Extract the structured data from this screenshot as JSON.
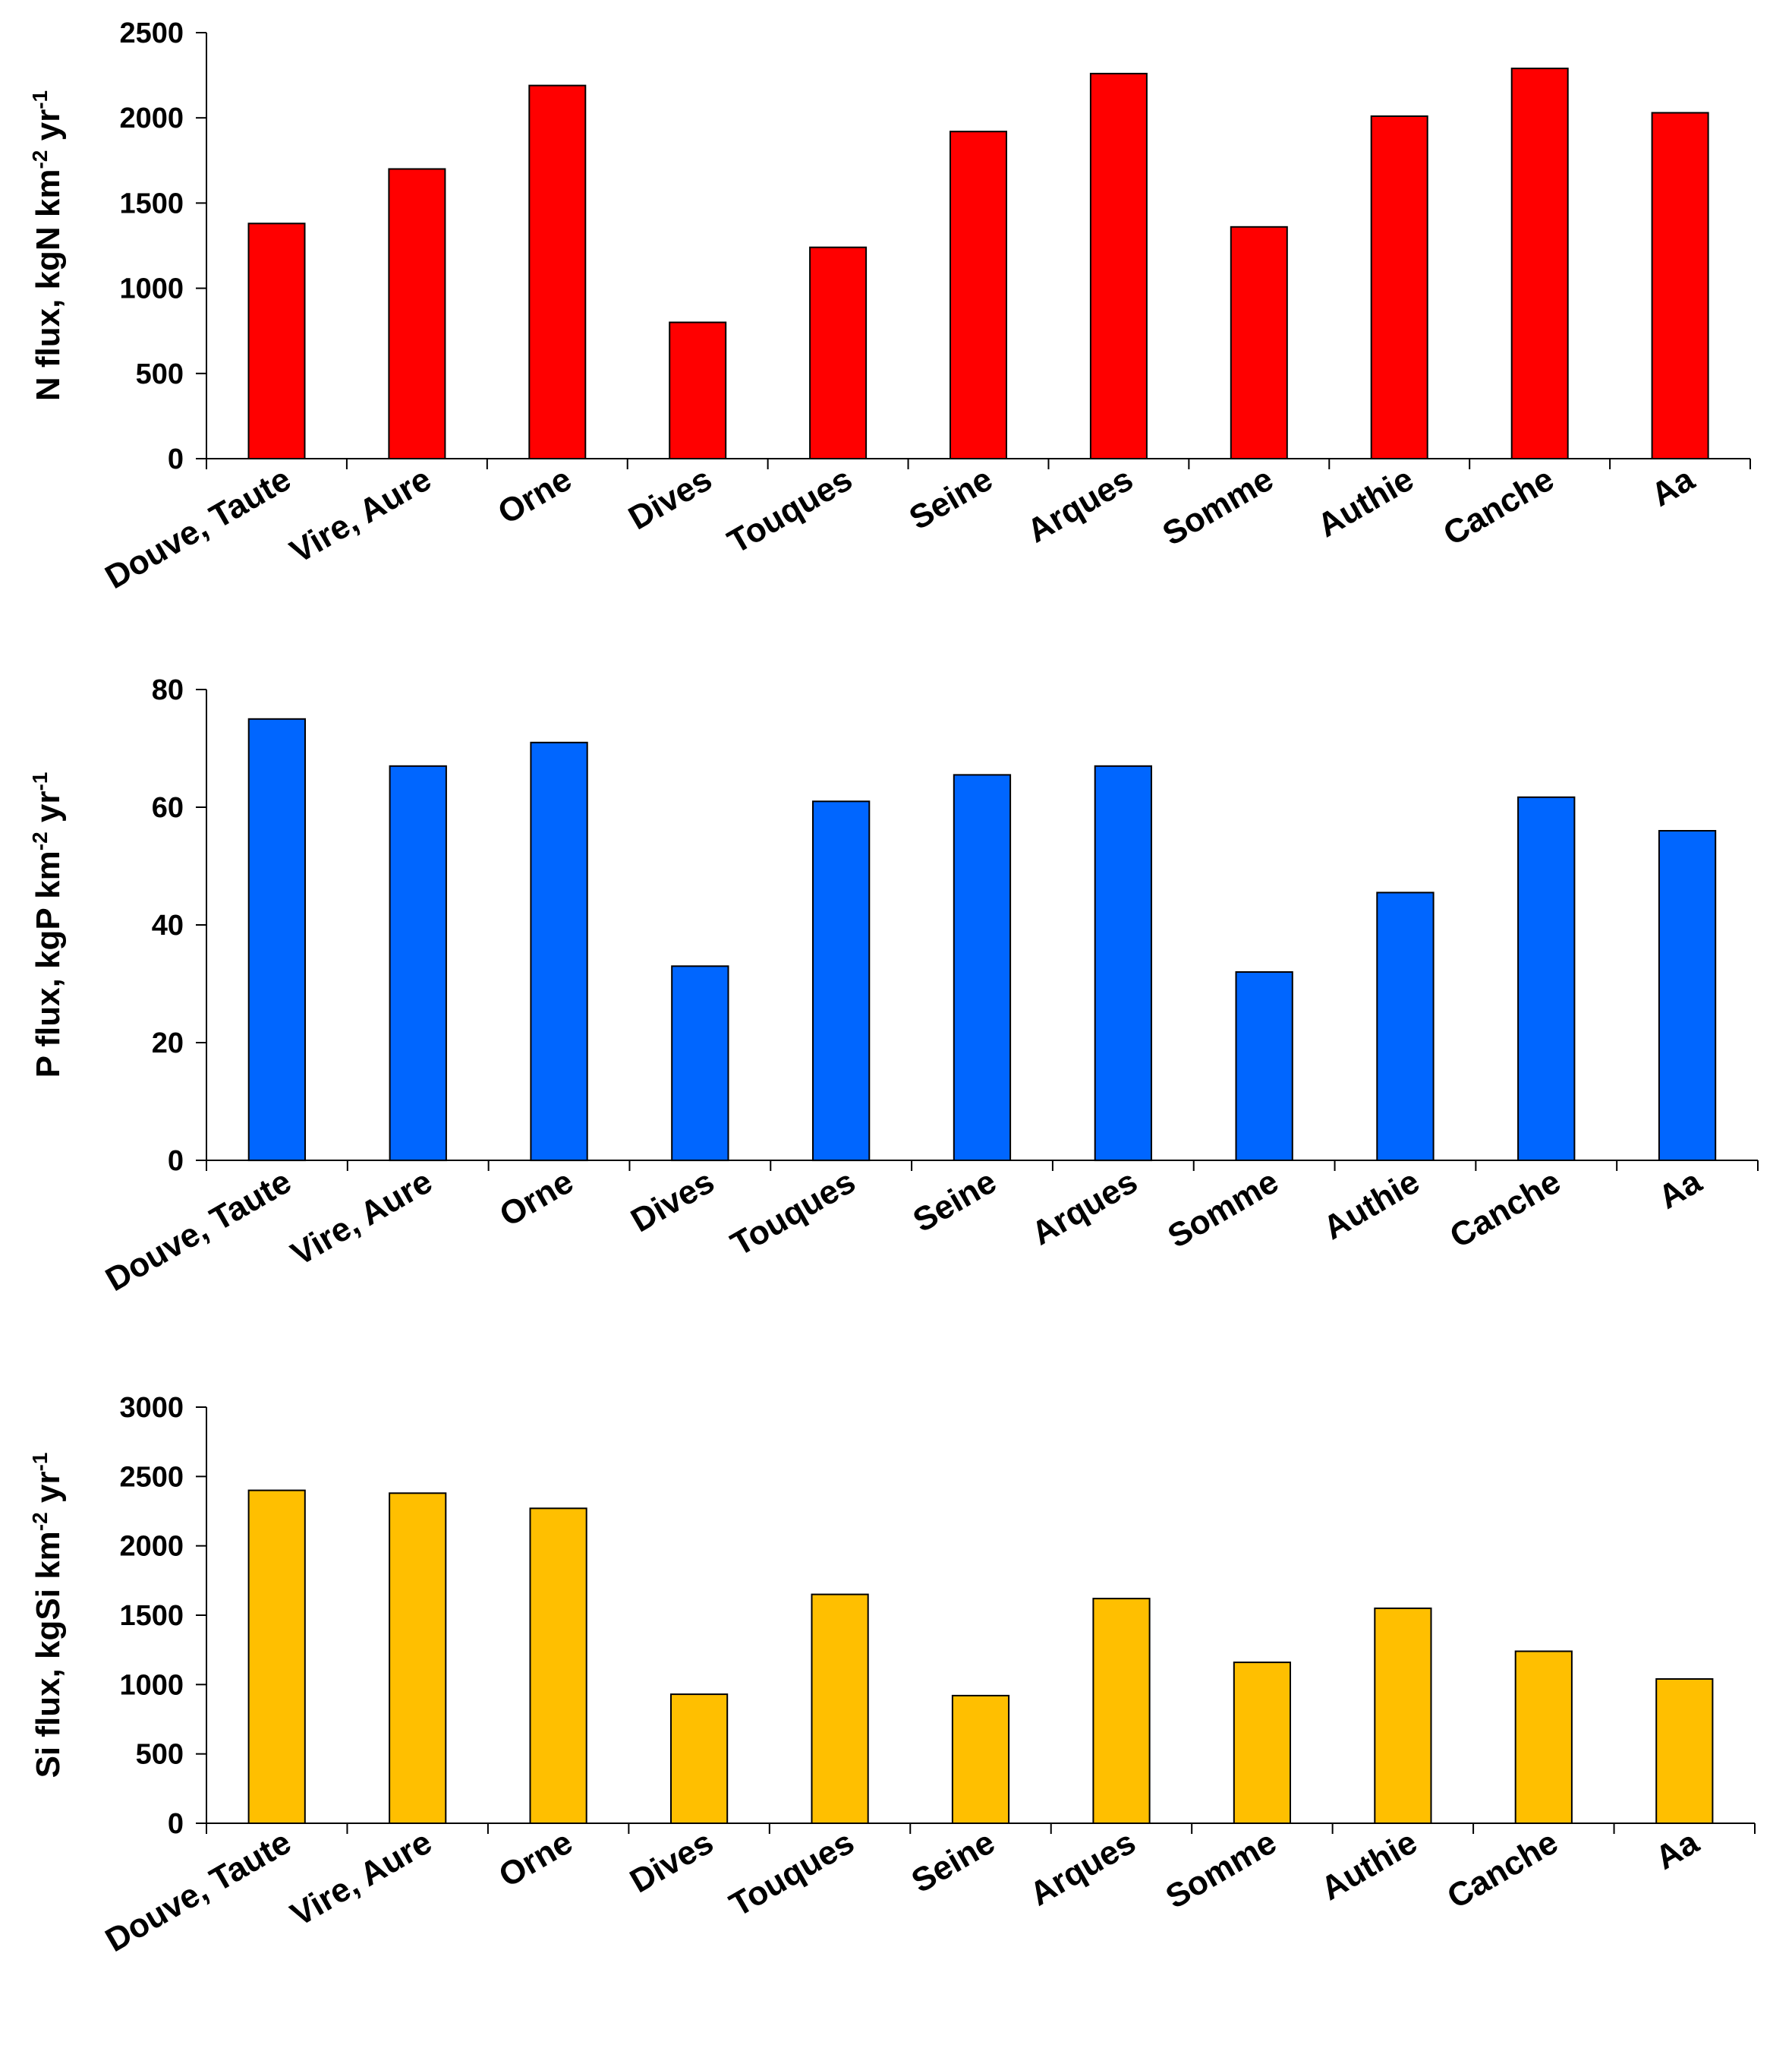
{
  "chart_data": [
    {
      "type": "bar",
      "ylabel": "N flux, kgN km",
      "ylabel_exp1": "-2",
      "ylabel_mid": " yr",
      "ylabel_exp2": "-1",
      "ylim": [
        0,
        2500
      ],
      "yticks": [
        "0",
        "500",
        "1000",
        "1500",
        "2000",
        "2500"
      ],
      "ytick_values": [
        0,
        500,
        1000,
        1500,
        2000,
        2500
      ],
      "color": "#ff0000",
      "categories": [
        "Douve, Taute",
        "Vire, Aure",
        "Orne",
        "Dives",
        "Touques",
        "Seine",
        "Arques",
        "Somme",
        "Authie",
        "Canche",
        "Aa"
      ],
      "values": [
        1380,
        1700,
        2190,
        800,
        1240,
        1920,
        2260,
        1360,
        2010,
        2290,
        2030
      ]
    },
    {
      "type": "bar",
      "ylabel": "P flux, kgP km",
      "ylabel_exp1": "-2",
      "ylabel_mid": " yr",
      "ylabel_exp2": "-1",
      "ylim": [
        0,
        80
      ],
      "yticks": [
        "0",
        "20",
        "40",
        "60",
        "80"
      ],
      "ytick_values": [
        0,
        20,
        40,
        60,
        80
      ],
      "color": "#0066ff",
      "categories": [
        "Douve, Taute",
        "Vire, Aure",
        "Orne",
        "Dives",
        "Touques",
        "Seine",
        "Arques",
        "Somme",
        "Authie",
        "Canche",
        "Aa"
      ],
      "values": [
        75,
        67,
        71,
        33,
        61,
        65.5,
        67,
        32,
        45.5,
        61.7,
        56
      ]
    },
    {
      "type": "bar",
      "ylabel": "Si flux, kgSi km",
      "ylabel_exp1": "-2",
      "ylabel_mid": " yr",
      "ylabel_exp2": "-1",
      "ylim": [
        0,
        3000
      ],
      "yticks": [
        "0",
        "500",
        "1000",
        "1500",
        "2000",
        "2500",
        "3000"
      ],
      "ytick_values": [
        0,
        500,
        1000,
        1500,
        2000,
        2500,
        3000
      ],
      "color": "#ffbf00",
      "categories": [
        "Douve, Taute",
        "Vire, Aure",
        "Orne",
        "Dives",
        "Touques",
        "Seine",
        "Arques",
        "Somme",
        "Authie",
        "Canche",
        "Aa"
      ],
      "values": [
        2400,
        2380,
        2270,
        930,
        1650,
        920,
        1620,
        1160,
        1550,
        1240,
        1040
      ]
    }
  ]
}
